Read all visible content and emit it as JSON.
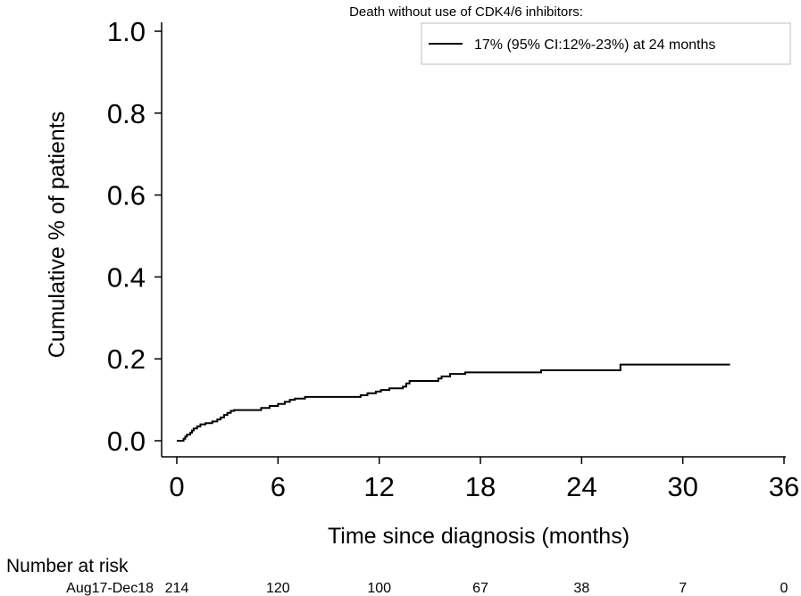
{
  "chart_data": {
    "type": "line",
    "title": "",
    "xlabel": "Time since diagnosis (months)",
    "ylabel": "Cumulative % of patients",
    "xlim": [
      0,
      36
    ],
    "ylim": [
      0,
      1
    ],
    "x_ticks": [
      0,
      6,
      12,
      18,
      24,
      30,
      36
    ],
    "y_ticks": [
      0.0,
      0.2,
      0.4,
      0.6,
      0.8,
      1.0
    ],
    "x_tick_labels": [
      "0",
      "6",
      "12",
      "18",
      "24",
      "30",
      "36"
    ],
    "y_tick_labels": [
      "0.0",
      "0.2",
      "0.4",
      "0.6",
      "0.8",
      "1.0"
    ],
    "grid": false,
    "legend": {
      "title": "Death without use of CDK4/6 inhibitors:",
      "placement": "top-right",
      "entries": [
        "17% (95% CI:12%-23%) at 24 months"
      ]
    },
    "series": [
      {
        "name": "17% (95% CI:12%-23%) at 24 months",
        "color": "#000000",
        "step": true,
        "points": [
          [
            0,
            0.0
          ],
          [
            0.4,
            0.005
          ],
          [
            0.5,
            0.01
          ],
          [
            0.6,
            0.015
          ],
          [
            0.8,
            0.02
          ],
          [
            0.9,
            0.025
          ],
          [
            1.0,
            0.03
          ],
          [
            1.2,
            0.035
          ],
          [
            1.4,
            0.04
          ],
          [
            1.7,
            0.043
          ],
          [
            2.1,
            0.047
          ],
          [
            2.4,
            0.052
          ],
          [
            2.6,
            0.057
          ],
          [
            2.8,
            0.063
          ],
          [
            3.0,
            0.068
          ],
          [
            3.2,
            0.073
          ],
          [
            3.4,
            0.075
          ],
          [
            5.0,
            0.08
          ],
          [
            5.5,
            0.085
          ],
          [
            6.0,
            0.09
          ],
          [
            6.4,
            0.095
          ],
          [
            6.7,
            0.1
          ],
          [
            7.0,
            0.103
          ],
          [
            7.6,
            0.107
          ],
          [
            10.9,
            0.111
          ],
          [
            11.3,
            0.116
          ],
          [
            11.8,
            0.12
          ],
          [
            12.1,
            0.124
          ],
          [
            12.6,
            0.128
          ],
          [
            13.4,
            0.132
          ],
          [
            13.6,
            0.14
          ],
          [
            13.8,
            0.146
          ],
          [
            15.5,
            0.152
          ],
          [
            15.7,
            0.157
          ],
          [
            16.2,
            0.163
          ],
          [
            17.1,
            0.167
          ],
          [
            21.6,
            0.172
          ],
          [
            26.3,
            0.186
          ],
          [
            32.8,
            0.186
          ]
        ]
      }
    ],
    "risk_table": {
      "heading": "Number at risk",
      "rows": [
        {
          "label": "Aug17-Dec18",
          "values": [
            "214",
            "120",
            "100",
            "67",
            "38",
            "7",
            "0"
          ]
        }
      ]
    }
  }
}
